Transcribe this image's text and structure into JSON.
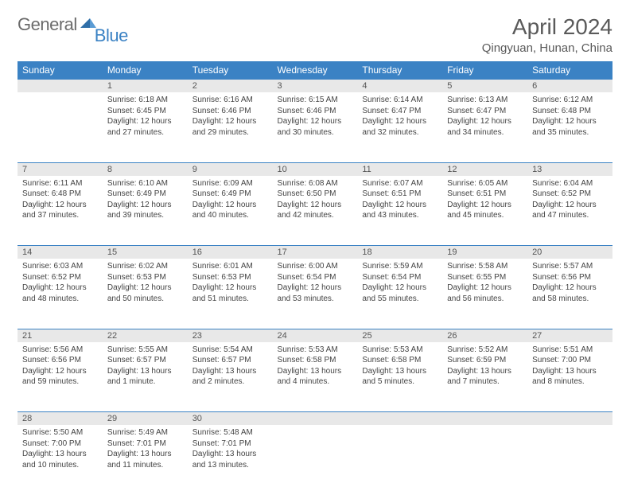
{
  "brand": {
    "part1": "General",
    "part2": "Blue"
  },
  "title": "April 2024",
  "location": "Qingyuan, Hunan, China",
  "header_bg": "#3b82c4",
  "daynum_bg": "#e8e8e8",
  "weekdays": [
    "Sunday",
    "Monday",
    "Tuesday",
    "Wednesday",
    "Thursday",
    "Friday",
    "Saturday"
  ],
  "weeks": [
    [
      null,
      {
        "n": "1",
        "sr": "6:18 AM",
        "ss": "6:45 PM",
        "dl": "12 hours and 27 minutes."
      },
      {
        "n": "2",
        "sr": "6:16 AM",
        "ss": "6:46 PM",
        "dl": "12 hours and 29 minutes."
      },
      {
        "n": "3",
        "sr": "6:15 AM",
        "ss": "6:46 PM",
        "dl": "12 hours and 30 minutes."
      },
      {
        "n": "4",
        "sr": "6:14 AM",
        "ss": "6:47 PM",
        "dl": "12 hours and 32 minutes."
      },
      {
        "n": "5",
        "sr": "6:13 AM",
        "ss": "6:47 PM",
        "dl": "12 hours and 34 minutes."
      },
      {
        "n": "6",
        "sr": "6:12 AM",
        "ss": "6:48 PM",
        "dl": "12 hours and 35 minutes."
      }
    ],
    [
      {
        "n": "7",
        "sr": "6:11 AM",
        "ss": "6:48 PM",
        "dl": "12 hours and 37 minutes."
      },
      {
        "n": "8",
        "sr": "6:10 AM",
        "ss": "6:49 PM",
        "dl": "12 hours and 39 minutes."
      },
      {
        "n": "9",
        "sr": "6:09 AM",
        "ss": "6:49 PM",
        "dl": "12 hours and 40 minutes."
      },
      {
        "n": "10",
        "sr": "6:08 AM",
        "ss": "6:50 PM",
        "dl": "12 hours and 42 minutes."
      },
      {
        "n": "11",
        "sr": "6:07 AM",
        "ss": "6:51 PM",
        "dl": "12 hours and 43 minutes."
      },
      {
        "n": "12",
        "sr": "6:05 AM",
        "ss": "6:51 PM",
        "dl": "12 hours and 45 minutes."
      },
      {
        "n": "13",
        "sr": "6:04 AM",
        "ss": "6:52 PM",
        "dl": "12 hours and 47 minutes."
      }
    ],
    [
      {
        "n": "14",
        "sr": "6:03 AM",
        "ss": "6:52 PM",
        "dl": "12 hours and 48 minutes."
      },
      {
        "n": "15",
        "sr": "6:02 AM",
        "ss": "6:53 PM",
        "dl": "12 hours and 50 minutes."
      },
      {
        "n": "16",
        "sr": "6:01 AM",
        "ss": "6:53 PM",
        "dl": "12 hours and 51 minutes."
      },
      {
        "n": "17",
        "sr": "6:00 AM",
        "ss": "6:54 PM",
        "dl": "12 hours and 53 minutes."
      },
      {
        "n": "18",
        "sr": "5:59 AM",
        "ss": "6:54 PM",
        "dl": "12 hours and 55 minutes."
      },
      {
        "n": "19",
        "sr": "5:58 AM",
        "ss": "6:55 PM",
        "dl": "12 hours and 56 minutes."
      },
      {
        "n": "20",
        "sr": "5:57 AM",
        "ss": "6:56 PM",
        "dl": "12 hours and 58 minutes."
      }
    ],
    [
      {
        "n": "21",
        "sr": "5:56 AM",
        "ss": "6:56 PM",
        "dl": "12 hours and 59 minutes."
      },
      {
        "n": "22",
        "sr": "5:55 AM",
        "ss": "6:57 PM",
        "dl": "13 hours and 1 minute."
      },
      {
        "n": "23",
        "sr": "5:54 AM",
        "ss": "6:57 PM",
        "dl": "13 hours and 2 minutes."
      },
      {
        "n": "24",
        "sr": "5:53 AM",
        "ss": "6:58 PM",
        "dl": "13 hours and 4 minutes."
      },
      {
        "n": "25",
        "sr": "5:53 AM",
        "ss": "6:58 PM",
        "dl": "13 hours and 5 minutes."
      },
      {
        "n": "26",
        "sr": "5:52 AM",
        "ss": "6:59 PM",
        "dl": "13 hours and 7 minutes."
      },
      {
        "n": "27",
        "sr": "5:51 AM",
        "ss": "7:00 PM",
        "dl": "13 hours and 8 minutes."
      }
    ],
    [
      {
        "n": "28",
        "sr": "5:50 AM",
        "ss": "7:00 PM",
        "dl": "13 hours and 10 minutes."
      },
      {
        "n": "29",
        "sr": "5:49 AM",
        "ss": "7:01 PM",
        "dl": "13 hours and 11 minutes."
      },
      {
        "n": "30",
        "sr": "5:48 AM",
        "ss": "7:01 PM",
        "dl": "13 hours and 13 minutes."
      },
      null,
      null,
      null,
      null
    ]
  ],
  "labels": {
    "sunrise": "Sunrise:",
    "sunset": "Sunset:",
    "daylight": "Daylight:"
  }
}
